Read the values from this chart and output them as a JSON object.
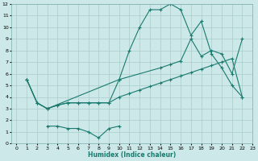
{
  "xlabel": "Humidex (Indice chaleur)",
  "bg_color": "#cce8e8",
  "line_color": "#1a7a6e",
  "grid_color": "#aacccc",
  "xlim": [
    -0.5,
    23
  ],
  "ylim": [
    0,
    12
  ],
  "xticks": [
    0,
    1,
    2,
    3,
    4,
    5,
    6,
    7,
    8,
    9,
    10,
    11,
    12,
    13,
    14,
    15,
    16,
    17,
    18,
    19,
    20,
    21,
    22,
    23
  ],
  "yticks": [
    0,
    1,
    2,
    3,
    4,
    5,
    6,
    7,
    8,
    9,
    10,
    11,
    12
  ],
  "series1_x": [
    1,
    2,
    3,
    4,
    5,
    6,
    7,
    8,
    9,
    10,
    11,
    12,
    13,
    14,
    15,
    16,
    17,
    18,
    19,
    20,
    21,
    22
  ],
  "series1_y": [
    5.5,
    3.5,
    3.0,
    3.3,
    3.5,
    3.5,
    3.5,
    3.5,
    3.5,
    5.5,
    8.0,
    10.0,
    11.5,
    11.5,
    12.0,
    11.5,
    9.3,
    10.5,
    7.7,
    6.5,
    5.0,
    4.0
  ],
  "series2_x": [
    1,
    2,
    3,
    10,
    14,
    15,
    16,
    17,
    18,
    19,
    20,
    21,
    22
  ],
  "series2_y": [
    5.5,
    3.5,
    3.0,
    5.5,
    6.5,
    6.8,
    7.1,
    9.0,
    7.5,
    8.0,
    7.7,
    6.0,
    9.0
  ],
  "series3_x": [
    1,
    2,
    3,
    4,
    5,
    6,
    7,
    8,
    9,
    10,
    11,
    12,
    13,
    14,
    15,
    16,
    17,
    18,
    19,
    20,
    21,
    22
  ],
  "series3_y": [
    5.5,
    3.5,
    3.0,
    3.3,
    3.5,
    3.5,
    3.5,
    3.5,
    3.5,
    4.0,
    4.3,
    4.6,
    4.9,
    5.2,
    5.5,
    5.8,
    6.1,
    6.4,
    6.7,
    7.0,
    7.3,
    4.0
  ],
  "series4_x": [
    3,
    4,
    5,
    6,
    7,
    8,
    9,
    10
  ],
  "series4_y": [
    1.5,
    1.5,
    1.3,
    1.3,
    1.0,
    0.5,
    1.3,
    1.5
  ]
}
